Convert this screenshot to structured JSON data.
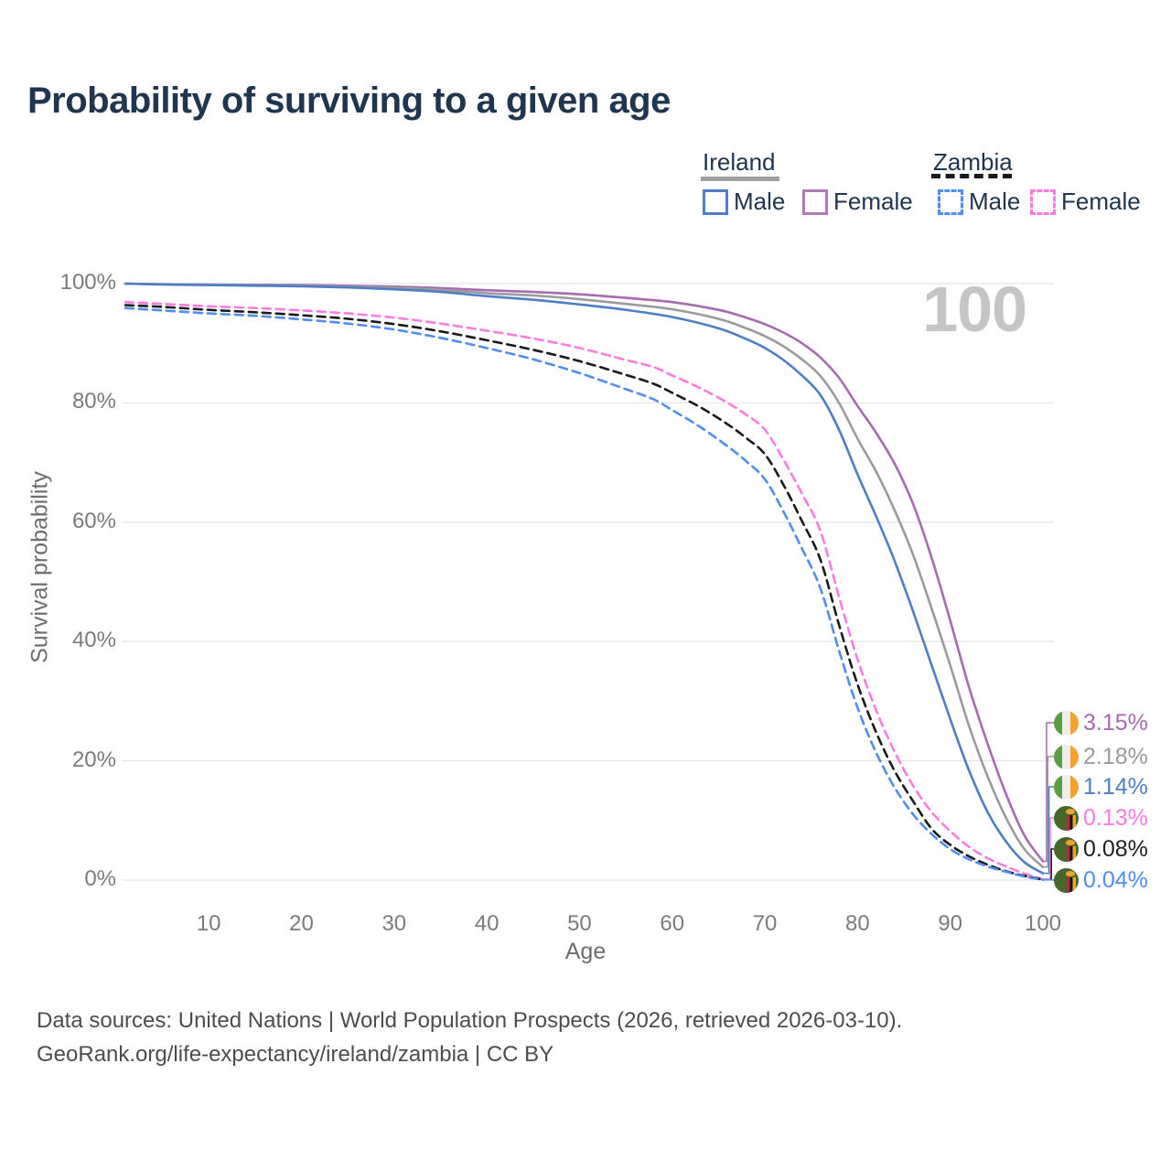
{
  "title": "Probability of surviving to a given age",
  "legend": {
    "ireland": {
      "label": "Ireland",
      "male": "Male",
      "female": "Female"
    },
    "zambia": {
      "label": "Zambia",
      "male": "Male",
      "female": "Female"
    }
  },
  "axes": {
    "y_label": "Survival probability",
    "x_label": "Age",
    "y_ticks": [
      "100%",
      "80%",
      "60%",
      "40%",
      "20%",
      "0%"
    ],
    "x_ticks": [
      "10",
      "20",
      "30",
      "40",
      "50",
      "60",
      "70",
      "80",
      "90",
      "100"
    ]
  },
  "watermark": "100",
  "end_labels": [
    {
      "country": "Ireland",
      "flag": "ireland-flag-icon",
      "value": "3.15%",
      "color": "#a66bb0"
    },
    {
      "country": "Ireland",
      "flag": "ireland-flag-icon",
      "value": "2.18%",
      "color": "#9b9b9b"
    },
    {
      "country": "Ireland",
      "flag": "ireland-flag-icon",
      "value": "1.14%",
      "color": "#4d7ec6"
    },
    {
      "country": "Zambia",
      "flag": "zambia-flag-icon",
      "value": "0.13%",
      "color": "#ff7be0"
    },
    {
      "country": "Zambia",
      "flag": "zambia-flag-icon",
      "value": "0.08%",
      "color": "#1f1f1f"
    },
    {
      "country": "Zambia",
      "flag": "zambia-flag-icon",
      "value": "0.04%",
      "color": "#4f8df2"
    }
  ],
  "footer": {
    "line1": "Data sources: United Nations | World Population Prospects (2026, retrieved 2026-03-10).",
    "line2": "GeoRank.org/life-expectancy/ireland/zambia | CC BY"
  },
  "colors": {
    "ireland_female": "#a66bb0",
    "ireland_both": "#9b9b9b",
    "ireland_male": "#4d7ec6",
    "zambia_female": "#ff7be0",
    "zambia_both": "#1a1a1a",
    "zambia_male": "#4f8df2",
    "gridline": "#e7e7e7",
    "legend_box_ireland_male": "#4d7ec6",
    "legend_box_ireland_female": "#b279b8",
    "legend_box_zambia_male": "#4f8df2",
    "legend_box_zambia_female": "#ff7be0"
  },
  "chart_data": {
    "type": "line",
    "title": "Probability of surviving to a given age",
    "xlabel": "Age",
    "ylabel": "Survival probability",
    "xlim": [
      1,
      100
    ],
    "ylim": [
      0,
      100
    ],
    "x_ticks": [
      10,
      20,
      30,
      40,
      50,
      60,
      70,
      80,
      90,
      100
    ],
    "y_ticks_pct": [
      0,
      20,
      40,
      60,
      80,
      100
    ],
    "grid": "horizontal",
    "legend_position": "top-right",
    "series": [
      {
        "name": "Ireland Female",
        "color": "#a66bb0",
        "dashed": false,
        "end_value_pct": 3.15,
        "points": [
          [
            1,
            100
          ],
          [
            5,
            99.9
          ],
          [
            10,
            99.85
          ],
          [
            15,
            99.8
          ],
          [
            20,
            99.75
          ],
          [
            25,
            99.65
          ],
          [
            30,
            99.5
          ],
          [
            35,
            99.25
          ],
          [
            40,
            98.9
          ],
          [
            45,
            98.6
          ],
          [
            50,
            98.2
          ],
          [
            55,
            97.6
          ],
          [
            60,
            96.9
          ],
          [
            65,
            95.6
          ],
          [
            68,
            94.3
          ],
          [
            70,
            93.2
          ],
          [
            72,
            91.8
          ],
          [
            74,
            90.0
          ],
          [
            76,
            87.6
          ],
          [
            78,
            84.2
          ],
          [
            80,
            79.5
          ],
          [
            82,
            75.0
          ],
          [
            84,
            69.8
          ],
          [
            86,
            63.0
          ],
          [
            88,
            54.0
          ],
          [
            90,
            43.5
          ],
          [
            92,
            32.5
          ],
          [
            94,
            23.0
          ],
          [
            96,
            14.5
          ],
          [
            98,
            7.5
          ],
          [
            100,
            3.15
          ]
        ]
      },
      {
        "name": "Ireland Both sexes",
        "color": "#9b9b9b",
        "dashed": false,
        "end_value_pct": 2.18,
        "points": [
          [
            1,
            100
          ],
          [
            5,
            99.9
          ],
          [
            10,
            99.8
          ],
          [
            15,
            99.75
          ],
          [
            20,
            99.65
          ],
          [
            25,
            99.5
          ],
          [
            30,
            99.3
          ],
          [
            35,
            98.95
          ],
          [
            40,
            98.4
          ],
          [
            45,
            98.0
          ],
          [
            50,
            97.4
          ],
          [
            55,
            96.6
          ],
          [
            60,
            95.7
          ],
          [
            65,
            94.1
          ],
          [
            68,
            92.5
          ],
          [
            70,
            91.2
          ],
          [
            72,
            89.5
          ],
          [
            74,
            87.3
          ],
          [
            76,
            84.5
          ],
          [
            78,
            80.0
          ],
          [
            80,
            74.0
          ],
          [
            82,
            68.5
          ],
          [
            84,
            62.0
          ],
          [
            86,
            54.5
          ],
          [
            88,
            45.5
          ],
          [
            90,
            36.0
          ],
          [
            92,
            26.0
          ],
          [
            94,
            17.5
          ],
          [
            96,
            10.5
          ],
          [
            98,
            5.2
          ],
          [
            100,
            2.18
          ]
        ]
      },
      {
        "name": "Ireland Male",
        "color": "#4d7ec6",
        "dashed": false,
        "end_value_pct": 1.14,
        "points": [
          [
            1,
            100
          ],
          [
            5,
            99.85
          ],
          [
            10,
            99.75
          ],
          [
            15,
            99.65
          ],
          [
            20,
            99.55
          ],
          [
            25,
            99.35
          ],
          [
            30,
            99.05
          ],
          [
            35,
            98.6
          ],
          [
            40,
            97.9
          ],
          [
            45,
            97.3
          ],
          [
            50,
            96.5
          ],
          [
            55,
            95.6
          ],
          [
            60,
            94.4
          ],
          [
            65,
            92.5
          ],
          [
            68,
            90.7
          ],
          [
            70,
            89.2
          ],
          [
            72,
            87.2
          ],
          [
            74,
            84.6
          ],
          [
            76,
            81.3
          ],
          [
            78,
            75.5
          ],
          [
            80,
            68.0
          ],
          [
            82,
            61.0
          ],
          [
            84,
            53.5
          ],
          [
            86,
            45.0
          ],
          [
            88,
            36.0
          ],
          [
            90,
            27.0
          ],
          [
            92,
            18.5
          ],
          [
            94,
            11.5
          ],
          [
            96,
            6.5
          ],
          [
            98,
            3.0
          ],
          [
            100,
            1.14
          ]
        ]
      },
      {
        "name": "Zambia Female",
        "color": "#ff7be0",
        "dashed": true,
        "end_value_pct": 0.13,
        "points": [
          [
            1,
            96.9
          ],
          [
            5,
            96.6
          ],
          [
            10,
            96.2
          ],
          [
            15,
            95.9
          ],
          [
            20,
            95.5
          ],
          [
            25,
            95.0
          ],
          [
            30,
            94.3
          ],
          [
            35,
            93.3
          ],
          [
            40,
            92.1
          ],
          [
            45,
            90.8
          ],
          [
            50,
            89.2
          ],
          [
            55,
            87.2
          ],
          [
            58,
            86.0
          ],
          [
            60,
            84.6
          ],
          [
            63,
            82.5
          ],
          [
            66,
            80.0
          ],
          [
            68,
            78.0
          ],
          [
            70,
            75.5
          ],
          [
            72,
            70.5
          ],
          [
            74,
            64.8
          ],
          [
            76,
            58.5
          ],
          [
            78,
            47.5
          ],
          [
            80,
            37.0
          ],
          [
            82,
            28.5
          ],
          [
            84,
            21.5
          ],
          [
            86,
            15.8
          ],
          [
            88,
            11.4
          ],
          [
            90,
            8.2
          ],
          [
            92,
            5.6
          ],
          [
            94,
            3.7
          ],
          [
            96,
            2.3
          ],
          [
            98,
            1.1
          ],
          [
            100,
            0.13
          ]
        ]
      },
      {
        "name": "Zambia Both sexes",
        "color": "#1a1a1a",
        "dashed": true,
        "end_value_pct": 0.08,
        "points": [
          [
            1,
            96.4
          ],
          [
            5,
            96.1
          ],
          [
            10,
            95.6
          ],
          [
            15,
            95.2
          ],
          [
            20,
            94.7
          ],
          [
            25,
            94.1
          ],
          [
            30,
            93.2
          ],
          [
            35,
            92.0
          ],
          [
            40,
            90.5
          ],
          [
            45,
            88.9
          ],
          [
            50,
            87.0
          ],
          [
            55,
            84.7
          ],
          [
            58,
            83.2
          ],
          [
            60,
            81.7
          ],
          [
            63,
            79.3
          ],
          [
            66,
            76.4
          ],
          [
            68,
            74.1
          ],
          [
            70,
            71.4
          ],
          [
            72,
            66.3
          ],
          [
            74,
            60.2
          ],
          [
            76,
            53.7
          ],
          [
            78,
            42.8
          ],
          [
            80,
            32.8
          ],
          [
            82,
            24.8
          ],
          [
            84,
            18.3
          ],
          [
            86,
            13.2
          ],
          [
            88,
            8.6
          ],
          [
            90,
            5.9
          ],
          [
            92,
            4.0
          ],
          [
            94,
            2.6
          ],
          [
            96,
            1.5
          ],
          [
            98,
            0.7
          ],
          [
            100,
            0.08
          ]
        ]
      },
      {
        "name": "Zambia Male",
        "color": "#4f8df2",
        "dashed": true,
        "end_value_pct": 0.04,
        "points": [
          [
            1,
            95.9
          ],
          [
            5,
            95.5
          ],
          [
            10,
            95.0
          ],
          [
            15,
            94.6
          ],
          [
            20,
            94.0
          ],
          [
            25,
            93.3
          ],
          [
            30,
            92.3
          ],
          [
            35,
            90.9
          ],
          [
            40,
            89.2
          ],
          [
            45,
            87.3
          ],
          [
            50,
            85.0
          ],
          [
            55,
            82.3
          ],
          [
            58,
            80.6
          ],
          [
            60,
            78.8
          ],
          [
            63,
            76.0
          ],
          [
            66,
            72.7
          ],
          [
            68,
            70.2
          ],
          [
            70,
            67.2
          ],
          [
            72,
            61.8
          ],
          [
            74,
            55.6
          ],
          [
            76,
            48.9
          ],
          [
            78,
            38.5
          ],
          [
            80,
            28.9
          ],
          [
            82,
            21.4
          ],
          [
            84,
            15.5
          ],
          [
            86,
            11.0
          ],
          [
            88,
            7.7
          ],
          [
            90,
            5.2
          ],
          [
            92,
            3.5
          ],
          [
            94,
            2.3
          ],
          [
            96,
            1.4
          ],
          [
            98,
            0.6
          ],
          [
            100,
            0.04
          ]
        ]
      }
    ]
  }
}
